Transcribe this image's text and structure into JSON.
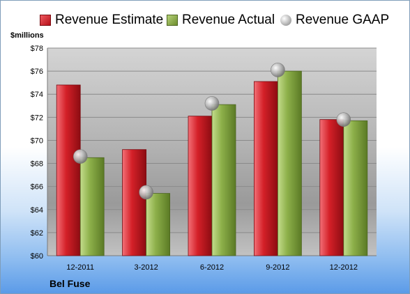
{
  "chart_data": {
    "type": "bar",
    "title": "",
    "units_label": "$millions",
    "company": "Bel Fuse",
    "categories": [
      "12-2011",
      "3-2012",
      "6-2012",
      "9-2012",
      "12-2012"
    ],
    "series": [
      {
        "name": "Revenue Estimate",
        "type": "bar",
        "color": "#d42028",
        "values": [
          74.8,
          69.2,
          72.1,
          75.1,
          71.8
        ]
      },
      {
        "name": "Revenue Actual",
        "type": "bar",
        "color": "#8db04a",
        "values": [
          68.5,
          65.4,
          73.1,
          76.0,
          71.7
        ]
      },
      {
        "name": "Revenue GAAP",
        "type": "marker",
        "color": "#b0b0b0",
        "values": [
          68.6,
          65.5,
          73.2,
          76.1,
          71.8
        ]
      }
    ],
    "ylim": [
      60,
      78
    ],
    "yticks": [
      "$60",
      "$62",
      "$64",
      "$66",
      "$68",
      "$70",
      "$72",
      "$74",
      "$76",
      "$78"
    ],
    "ytick_values": [
      60,
      62,
      64,
      66,
      68,
      70,
      72,
      74,
      76,
      78
    ],
    "grid": true,
    "legend_position": "top"
  }
}
